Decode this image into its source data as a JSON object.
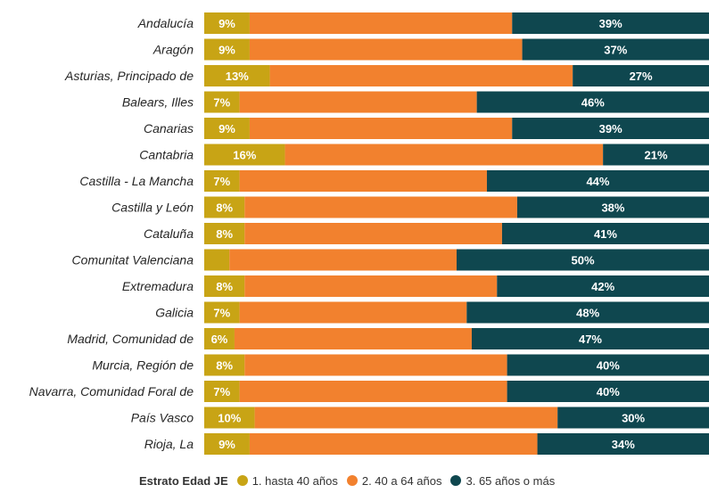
{
  "chart_data": {
    "type": "bar",
    "orientation": "horizontal",
    "stacked": true,
    "normalized_percent": true,
    "categories": [
      "Andalucía",
      "Aragón",
      "Asturias, Principado de",
      "Balears, Illes",
      "Canarias",
      "Cantabria",
      "Castilla - La Mancha",
      "Castilla y León",
      "Cataluña",
      "Comunitat Valenciana",
      "Extremadura",
      "Galicia",
      "Madrid, Comunidad de",
      "Murcia, Región de",
      "Navarra, Comunidad Foral de",
      "País Vasco",
      "Rioja, La"
    ],
    "series": [
      {
        "name": "1. hasta 40 años",
        "color": "#C8A415",
        "values": [
          9,
          9,
          13,
          7,
          9,
          16,
          7,
          8,
          8,
          5,
          8,
          7,
          6,
          8,
          7,
          10,
          9
        ],
        "labels": [
          "9%",
          "9%",
          "13%",
          "7%",
          "9%",
          "16%",
          "7%",
          "8%",
          "8%",
          "",
          "8%",
          "7%",
          "6%",
          "8%",
          "7%",
          "10%",
          "9%"
        ]
      },
      {
        "name": "2. 40 a 64 años",
        "color": "#F2812E",
        "values": [
          52,
          54,
          60,
          47,
          52,
          63,
          49,
          54,
          51,
          45,
          50,
          45,
          47,
          52,
          53,
          60,
          57
        ],
        "labels": [
          "",
          "",
          "",
          "",
          "",
          "",
          "",
          "",
          "",
          "",
          "",
          "",
          "",
          "",
          "",
          "",
          ""
        ]
      },
      {
        "name": "3. 65 años o más",
        "color": "#0F474F",
        "values": [
          39,
          37,
          27,
          46,
          39,
          21,
          44,
          38,
          41,
          50,
          42,
          48,
          47,
          40,
          40,
          30,
          34
        ],
        "labels": [
          "39%",
          "37%",
          "27%",
          "46%",
          "39%",
          "21%",
          "44%",
          "38%",
          "41%",
          "50%",
          "42%",
          "48%",
          "47%",
          "40%",
          "40%",
          "30%",
          "34%"
        ]
      }
    ],
    "xlim": [
      0,
      100
    ],
    "grid": false,
    "legend_position": "bottom",
    "legend_title": "Estrato Edad JE"
  }
}
